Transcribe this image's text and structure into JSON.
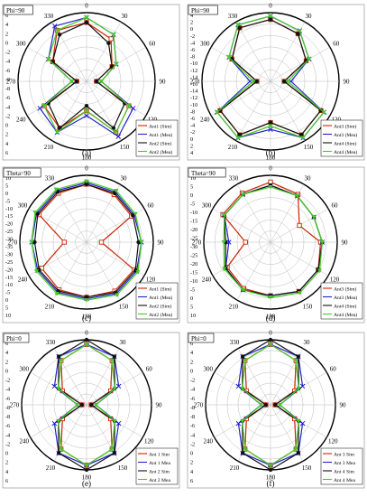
{
  "figure": {
    "panels": [
      {
        "id": "a",
        "caption": "(a)",
        "label": "Phi=90"
      },
      {
        "id": "b",
        "caption": "(b)",
        "label": "Phi=90"
      },
      {
        "id": "c",
        "caption": "(c)",
        "label": "Theta=90"
      },
      {
        "id": "d",
        "caption": "(d)",
        "label": "Theta=90"
      },
      {
        "id": "e",
        "caption": "(e)",
        "label": "Phi=0"
      },
      {
        "id": "f",
        "caption": "(f)",
        "label": "Phi=0"
      }
    ]
  },
  "series_colors": {
    "sim_a": "#cc2200",
    "mea_a": "#2222cc",
    "sim_b": "#111111",
    "mea_b": "#44cc22"
  },
  "chart_data": [
    {
      "type": "polar-line",
      "panel": "a",
      "label": "Phi=90",
      "angle_ticks": [
        "0",
        "30",
        "60",
        "90",
        "120",
        "150",
        "180",
        "210",
        "240",
        "270",
        "300",
        "330"
      ],
      "radial_ticks": [
        "6",
        "4",
        "2",
        "0",
        "-2",
        "-4",
        "-6",
        "-8",
        "-8",
        "-6",
        "-4",
        "-2",
        "0",
        "2",
        "4",
        "6"
      ],
      "r_range": [
        -8,
        6
      ],
      "angles": [
        0,
        30,
        60,
        90,
        120,
        150,
        180,
        210,
        240,
        270,
        300,
        330
      ],
      "series": [
        {
          "name": "Ant1 (Sim)",
          "color": "#cc2200",
          "marker": "square",
          "values": [
            4,
            2,
            -2,
            -6,
            2,
            4,
            -2,
            3,
            2,
            -6,
            0,
            4
          ]
        },
        {
          "name": "Ant1 (Mea)",
          "color": "#2222cc",
          "marker": "x",
          "values": [
            5,
            3,
            -1,
            -5,
            3,
            5,
            -1,
            4,
            3,
            -5,
            1,
            5
          ]
        },
        {
          "name": "Ant2 (Sim)",
          "color": "#111111",
          "marker": "circle",
          "values": [
            4,
            1,
            -2,
            -6,
            1,
            3,
            -3,
            3,
            1,
            -6,
            0,
            3
          ]
        },
        {
          "name": "Ant2 (Mea)",
          "color": "#44cc22",
          "marker": "triangle",
          "values": [
            5,
            3,
            -1,
            -5,
            2,
            4,
            -2,
            4,
            2,
            -5,
            1,
            4
          ]
        }
      ]
    },
    {
      "type": "polar-line",
      "panel": "b",
      "label": "Phi=90",
      "angle_ticks": [
        "0",
        "30",
        "60",
        "90",
        "120",
        "150",
        "180",
        "210",
        "240",
        "270",
        "300",
        "330"
      ],
      "radial_ticks": [
        "4",
        "2",
        "0",
        "-2",
        "-4",
        "-6",
        "-8",
        "-10",
        "-12",
        "-14",
        "-16",
        "-14",
        "-12",
        "-10",
        "-8",
        "-6",
        "-4",
        "-2",
        "0",
        "2",
        "4"
      ],
      "r_range": [
        -16,
        4
      ],
      "angles": [
        0,
        30,
        60,
        90,
        120,
        150,
        180,
        210,
        240,
        270,
        300,
        330
      ],
      "series": [
        {
          "name": "Ant3 (Sim)",
          "color": "#cc2200",
          "marker": "square",
          "values": [
            2,
            0,
            -4,
            -12,
            1,
            2,
            -4,
            2,
            1,
            -12,
            -3,
            2
          ]
        },
        {
          "name": "Ant3 (Mea)",
          "color": "#2222cc",
          "marker": "x",
          "values": [
            3,
            1,
            -3,
            -10,
            2,
            3,
            -2,
            3,
            2,
            -10,
            -2,
            3
          ]
        },
        {
          "name": "Ant4 (Sim)",
          "color": "#111111",
          "marker": "circle",
          "values": [
            2,
            0,
            -4,
            -12,
            1,
            2,
            -4,
            2,
            1,
            -12,
            -3,
            2
          ]
        },
        {
          "name": "Ant4 (Mea)",
          "color": "#44cc22",
          "marker": "triangle",
          "values": [
            3,
            1,
            -3,
            -11,
            2,
            3,
            -3,
            3,
            2,
            -11,
            -2,
            3
          ]
        }
      ]
    },
    {
      "type": "polar-line",
      "panel": "c",
      "label": "Theta=90",
      "angle_ticks": [
        "0",
        "30",
        "60",
        "90",
        "120",
        "150",
        "180",
        "210",
        "240",
        "270",
        "300",
        "330"
      ],
      "radial_ticks": [
        "10",
        "5",
        "0",
        "-5",
        "-10",
        "-15",
        "-20",
        "-25",
        "-30",
        "-35",
        "-30",
        "-25",
        "-20",
        "-15",
        "-10",
        "-5",
        "0",
        "5",
        "10"
      ],
      "r_range": [
        -35,
        10
      ],
      "angles": [
        0,
        30,
        60,
        90,
        120,
        150,
        180,
        210,
        240,
        270,
        300,
        330
      ],
      "series": [
        {
          "name": "Ant1 (Sim)",
          "color": "#cc2200",
          "marker": "square",
          "values": [
            4,
            2,
            0,
            -25,
            2,
            3,
            2,
            2,
            0,
            -20,
            2,
            3
          ]
        },
        {
          "name": "Ant1 (Mea)",
          "color": "#2222cc",
          "marker": "x",
          "values": [
            5,
            4,
            2,
            2,
            4,
            5,
            3,
            4,
            3,
            2,
            4,
            5
          ]
        },
        {
          "name": "Ant2 (Sim)",
          "color": "#111111",
          "marker": "circle",
          "values": [
            4,
            3,
            1,
            0,
            3,
            4,
            2,
            3,
            2,
            0,
            3,
            4
          ]
        },
        {
          "name": "Ant2 (Mea)",
          "color": "#44cc22",
          "marker": "triangle",
          "values": [
            6,
            5,
            3,
            2,
            5,
            6,
            4,
            5,
            4,
            2,
            5,
            6
          ]
        }
      ]
    },
    {
      "type": "polar-line",
      "panel": "d",
      "label": "Theta=90",
      "angle_ticks": [
        "0",
        "30",
        "60",
        "90",
        "120",
        "150",
        "180",
        "210",
        "240",
        "270",
        "300",
        "330"
      ],
      "radial_ticks": [
        "10",
        "5",
        "0",
        "-5",
        "-10",
        "-15",
        "-20",
        "-25",
        "-30",
        "-25",
        "-20",
        "-15",
        "-10",
        "-5",
        "0",
        "5",
        "10"
      ],
      "r_range": [
        -30,
        10
      ],
      "angles": [
        0,
        30,
        60,
        90,
        120,
        150,
        180,
        210,
        240,
        270,
        300,
        330
      ],
      "series": [
        {
          "name": "Ant3 (Sim)",
          "color": "#cc2200",
          "marker": "square",
          "values": [
            6,
            3,
            -10,
            0,
            3,
            4,
            2,
            2,
            0,
            -15,
            3,
            4
          ]
        },
        {
          "name": "Ant3 (Mea)",
          "color": "#2222cc",
          "marker": "x",
          "values": [
            4,
            2,
            0,
            1,
            3,
            4,
            2,
            3,
            1,
            -5,
            2,
            3
          ]
        },
        {
          "name": "Ant4 (Sim)",
          "color": "#111111",
          "marker": "circle",
          "values": [
            4,
            2,
            0,
            1,
            3,
            4,
            2,
            3,
            1,
            -3,
            2,
            3
          ]
        },
        {
          "name": "Ant4 (Mea)",
          "color": "#44cc22",
          "marker": "triangle",
          "values": [
            3,
            2,
            0,
            1,
            4,
            5,
            3,
            3,
            2,
            -2,
            2,
            3
          ]
        }
      ]
    },
    {
      "type": "polar-line",
      "panel": "e",
      "label": "Phi=0",
      "angle_ticks": [
        "0",
        "30",
        "60",
        "90",
        "120",
        "150",
        "180",
        "210",
        "240",
        "270",
        "300",
        "330"
      ],
      "radial_ticks": [
        "6",
        "4",
        "2",
        "0",
        "-2",
        "-4",
        "-6",
        "-8",
        "-8",
        "-6",
        "-4",
        "-2",
        "0",
        "2",
        "4",
        "6"
      ],
      "r_range": [
        -8,
        6
      ],
      "angles": [
        0,
        30,
        60,
        90,
        120,
        150,
        180,
        210,
        240,
        270,
        300,
        330
      ],
      "series": [
        {
          "name": "Ant 1 Sim",
          "color": "#cc2200",
          "marker": "square",
          "values": [
            5,
            3,
            -2,
            -7,
            -2,
            3,
            5,
            3,
            -2,
            -7,
            -2,
            3
          ]
        },
        {
          "name": "Ant 1 Mea",
          "color": "#2222cc",
          "marker": "x",
          "values": [
            5,
            4,
            0,
            -6,
            0,
            4,
            5,
            4,
            0,
            -6,
            0,
            4
          ]
        },
        {
          "name": "Ant 2 Sim",
          "color": "#111111",
          "marker": "circle",
          "values": [
            6,
            4,
            -1,
            -7,
            -1,
            4,
            6,
            4,
            -1,
            -7,
            -1,
            4
          ]
        },
        {
          "name": "Ant 2 Mea",
          "color": "#44cc22",
          "marker": "triangle",
          "values": [
            5,
            3,
            -1,
            -6,
            -1,
            3,
            5,
            3,
            -1,
            -6,
            -1,
            3
          ]
        }
      ]
    },
    {
      "type": "polar-line",
      "panel": "f",
      "label": "Phi=0",
      "angle_ticks": [
        "0",
        "30",
        "60",
        "90",
        "120",
        "150",
        "180",
        "210",
        "240",
        "270",
        "300",
        "330"
      ],
      "radial_ticks": [
        "6",
        "4",
        "2",
        "0",
        "-2",
        "-4",
        "-6",
        "-8",
        "-8",
        "-6",
        "-4",
        "-2",
        "0",
        "2",
        "4",
        "6"
      ],
      "r_range": [
        -8,
        6
      ],
      "angles": [
        0,
        30,
        60,
        90,
        120,
        150,
        180,
        210,
        240,
        270,
        300,
        330
      ],
      "series": [
        {
          "name": "Ant 3 Sim",
          "color": "#cc2200",
          "marker": "square",
          "values": [
            5,
            3,
            -2,
            -7,
            -2,
            3,
            5,
            3,
            -2,
            -7,
            -2,
            3
          ]
        },
        {
          "name": "Ant 3 Mea",
          "color": "#2222cc",
          "marker": "x",
          "values": [
            5,
            4,
            0,
            -6,
            0,
            4,
            5,
            4,
            0,
            -6,
            0,
            4
          ]
        },
        {
          "name": "Ant 4 Sim",
          "color": "#111111",
          "marker": "circle",
          "values": [
            6,
            4,
            -1,
            -7,
            -1,
            4,
            6,
            4,
            -1,
            -7,
            -1,
            4
          ]
        },
        {
          "name": "Ant 4 Mea",
          "color": "#44cc22",
          "marker": "triangle",
          "values": [
            5,
            3,
            -1,
            -6,
            -1,
            3,
            5,
            3,
            -1,
            -6,
            -1,
            3
          ]
        }
      ]
    }
  ]
}
